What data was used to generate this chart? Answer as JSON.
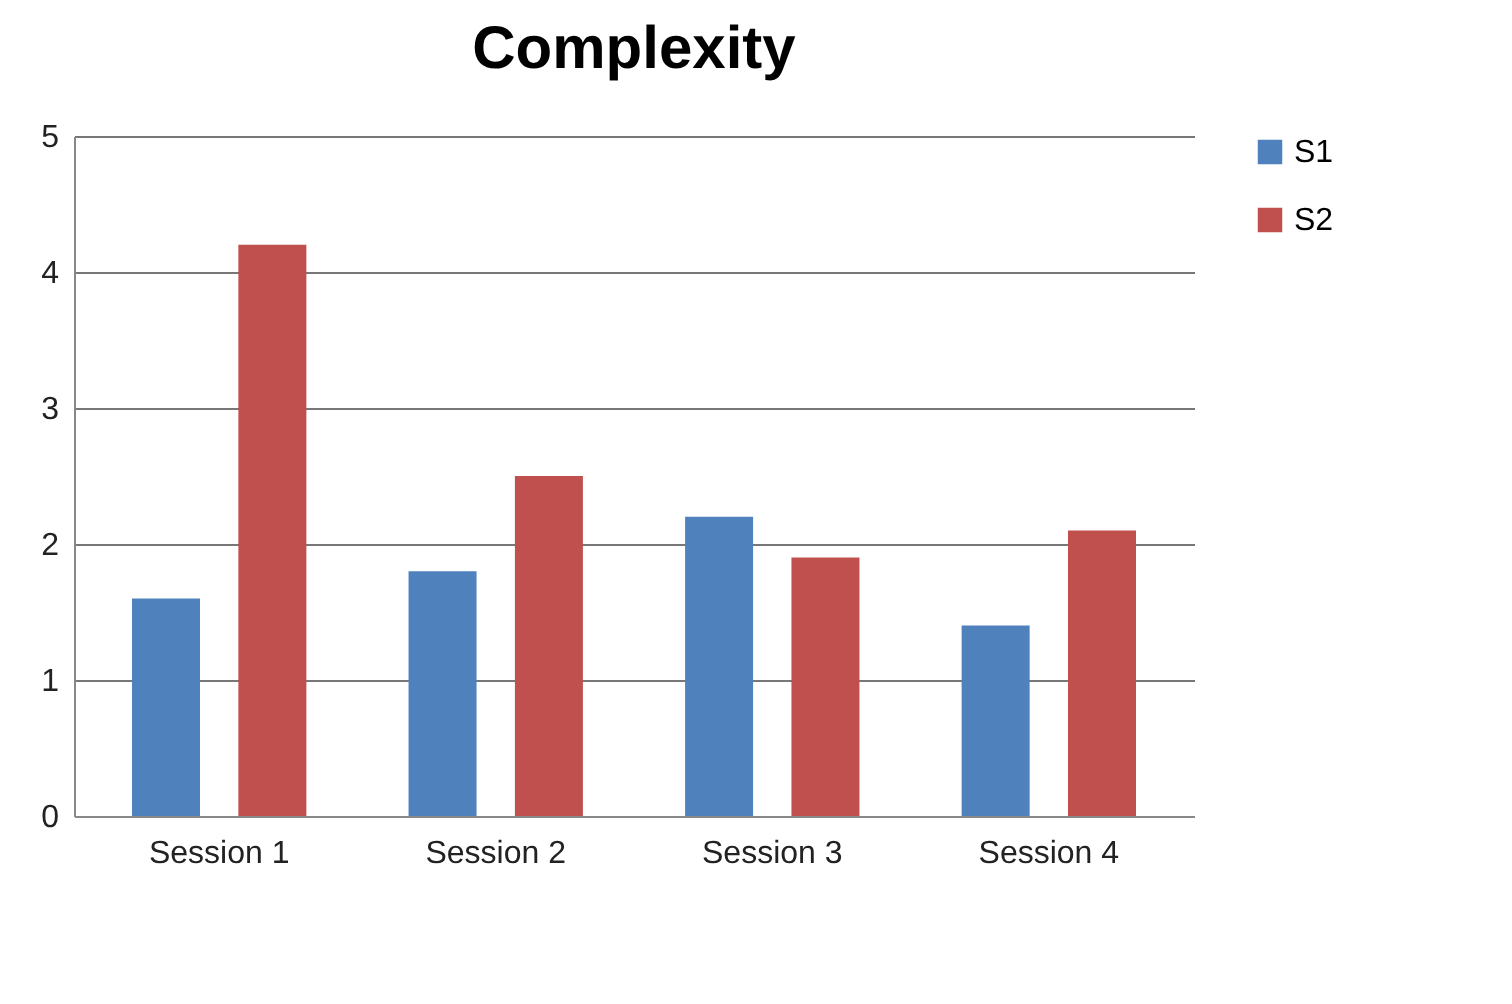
{
  "chart_data": {
    "type": "bar",
    "title": "Complexity",
    "categories": [
      "Session 1",
      "Session 2",
      "Session 3",
      "Session 4"
    ],
    "series": [
      {
        "name": "S1",
        "color": "#4f81bd",
        "values": [
          1.6,
          1.8,
          2.2,
          1.4
        ]
      },
      {
        "name": "S2",
        "color": "#c0504d",
        "values": [
          4.2,
          2.5,
          1.9,
          2.1
        ]
      }
    ],
    "ylim": [
      0,
      5
    ],
    "yticks": [
      0,
      1,
      2,
      3,
      4,
      5
    ],
    "grid": "y",
    "legend": "right"
  }
}
